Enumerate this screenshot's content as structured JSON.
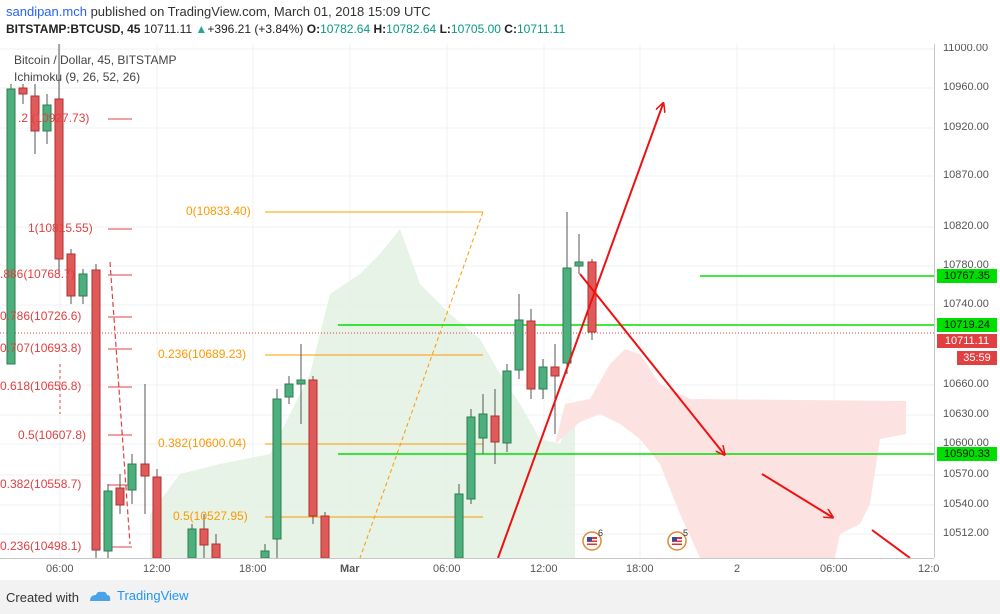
{
  "header": {
    "author": "sandipan.mch",
    "published_text": " published on TradingView.com, March 01, 2018 15:09 UTC",
    "symbol": "BITSTAMP:BTCUSD, 45",
    "last": "10711.11",
    "change": "+396.21 (+3.84%)",
    "open_label": "O:",
    "open": "10782.64",
    "high_label": "H:",
    "high": "10782.64",
    "low_label": "L:",
    "low": "10705.00",
    "close_label": "C:",
    "close": "10711.11"
  },
  "legend": {
    "title": "Bitcoin / Dollar, 45, BITSTAMP",
    "indicator": "Ichimoku (9, 26, 52, 26)"
  },
  "time_ticks": [
    "06:00",
    "12:00",
    "18:00",
    "Mar",
    "06:00",
    "12:00",
    "18:00",
    "2",
    "06:00",
    "12:0"
  ],
  "price_ticks": [
    "11000.00",
    "10960.00",
    "10920.00",
    "10870.00",
    "10820.00",
    "10780.00",
    "10740.00",
    "10660.00",
    "10630.00",
    "10600.00",
    "10570.00",
    "10540.00",
    "10512.00"
  ],
  "price_labels": {
    "level_1": "10767.35",
    "level_2": "10719.24",
    "last_price": "10711.11",
    "countdown": "35:59",
    "level_3": "10590.33"
  },
  "fib_red": [
    ".2 (10927.73)",
    "1(10815.55)",
    ".886(10768.7)",
    "0.786(10726.6)",
    "0.707(10693.8)",
    "0.618(10656.8)",
    "0.5(10607.8)",
    "0.382(10558.7)",
    "0.236(10498.1)"
  ],
  "fib_orange": [
    "0(10833.40)",
    "0.236(10689.23)",
    "0.382(10600.04)",
    "0.5(10527.95)"
  ],
  "events": [
    "6",
    "5"
  ],
  "footer": {
    "created": "Created with",
    "brand": "TradingView"
  },
  "colors": {
    "bull": "#4caf7d",
    "bear": "#e05a5a",
    "fib_red": "#e04040",
    "fib_orange": "#ff9800",
    "horizontal_green": "#00e000",
    "cloud_green": "#e3f2e3",
    "cloud_red": "#fde0e0",
    "arrow": "#ee1111"
  }
}
